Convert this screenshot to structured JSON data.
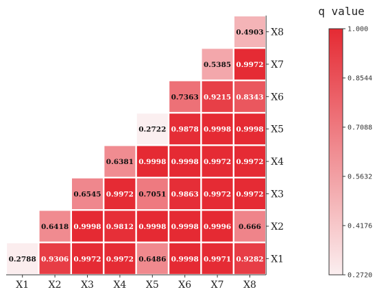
{
  "chart_data": {
    "type": "heatmap",
    "title": "",
    "x_categories": [
      "X1",
      "X2",
      "X3",
      "X4",
      "X5",
      "X6",
      "X7",
      "X8"
    ],
    "y_categories": [
      "X1",
      "X2",
      "X3",
      "X4",
      "X5",
      "X6",
      "X7",
      "X8"
    ],
    "layout": "lower-triangular",
    "cells": [
      {
        "x": "X1",
        "y": "X1",
        "value": 0.2788,
        "label": "0.2788"
      },
      {
        "x": "X2",
        "y": "X1",
        "value": 0.9306,
        "label": "0.9306"
      },
      {
        "x": "X3",
        "y": "X1",
        "value": 0.9972,
        "label": "0.9972"
      },
      {
        "x": "X4",
        "y": "X1",
        "value": 0.9972,
        "label": "0.9972"
      },
      {
        "x": "X5",
        "y": "X1",
        "value": 0.6486,
        "label": "0.6486"
      },
      {
        "x": "X6",
        "y": "X1",
        "value": 0.9998,
        "label": "0.9998"
      },
      {
        "x": "X7",
        "y": "X1",
        "value": 0.9971,
        "label": "0.9971"
      },
      {
        "x": "X8",
        "y": "X1",
        "value": 0.9282,
        "label": "0.9282"
      },
      {
        "x": "X2",
        "y": "X2",
        "value": 0.6418,
        "label": "0.6418"
      },
      {
        "x": "X3",
        "y": "X2",
        "value": 0.9998,
        "label": "0.9998"
      },
      {
        "x": "X4",
        "y": "X2",
        "value": 0.9812,
        "label": "0.9812"
      },
      {
        "x": "X5",
        "y": "X2",
        "value": 0.9998,
        "label": "0.9998"
      },
      {
        "x": "X6",
        "y": "X2",
        "value": 0.9998,
        "label": "0.9998"
      },
      {
        "x": "X7",
        "y": "X2",
        "value": 0.9996,
        "label": "0.9996"
      },
      {
        "x": "X8",
        "y": "X2",
        "value": 0.666,
        "label": "0.666"
      },
      {
        "x": "X3",
        "y": "X3",
        "value": 0.6545,
        "label": "0.6545"
      },
      {
        "x": "X4",
        "y": "X3",
        "value": 0.9972,
        "label": "0.9972"
      },
      {
        "x": "X5",
        "y": "X3",
        "value": 0.7051,
        "label": "0.7051"
      },
      {
        "x": "X6",
        "y": "X3",
        "value": 0.9863,
        "label": "0.9863"
      },
      {
        "x": "X7",
        "y": "X3",
        "value": 0.9972,
        "label": "0.9972"
      },
      {
        "x": "X8",
        "y": "X3",
        "value": 0.9972,
        "label": "0.9972"
      },
      {
        "x": "X4",
        "y": "X4",
        "value": 0.6381,
        "label": "0.6381"
      },
      {
        "x": "X5",
        "y": "X4",
        "value": 0.9998,
        "label": "0.9998"
      },
      {
        "x": "X6",
        "y": "X4",
        "value": 0.9998,
        "label": "0.9998"
      },
      {
        "x": "X7",
        "y": "X4",
        "value": 0.9972,
        "label": "0.9972"
      },
      {
        "x": "X8",
        "y": "X4",
        "value": 0.9972,
        "label": "0.9972"
      },
      {
        "x": "X5",
        "y": "X5",
        "value": 0.2722,
        "label": "0.2722"
      },
      {
        "x": "X6",
        "y": "X5",
        "value": 0.9878,
        "label": "0.9878"
      },
      {
        "x": "X7",
        "y": "X5",
        "value": 0.9998,
        "label": "0.9998"
      },
      {
        "x": "X8",
        "y": "X5",
        "value": 0.9998,
        "label": "0.9998"
      },
      {
        "x": "X6",
        "y": "X6",
        "value": 0.7363,
        "label": "0.7363"
      },
      {
        "x": "X7",
        "y": "X6",
        "value": 0.9215,
        "label": "0.9215"
      },
      {
        "x": "X8",
        "y": "X6",
        "value": 0.8343,
        "label": "0.8343"
      },
      {
        "x": "X7",
        "y": "X7",
        "value": 0.5385,
        "label": "0.5385"
      },
      {
        "x": "X8",
        "y": "X7",
        "value": 0.9972,
        "label": "0.9972"
      },
      {
        "x": "X8",
        "y": "X8",
        "value": 0.4903,
        "label": "0.4903"
      }
    ],
    "colorbar": {
      "title": "q value",
      "range": [
        0.272,
        1.0
      ],
      "ticks": [
        "1.000",
        "0.8544",
        "0.7088",
        "0.5632",
        "0.4176",
        "0.2720"
      ],
      "color_low": "#fbeff0",
      "color_high": "#e52a33"
    },
    "light_text_above": 0.8
  }
}
